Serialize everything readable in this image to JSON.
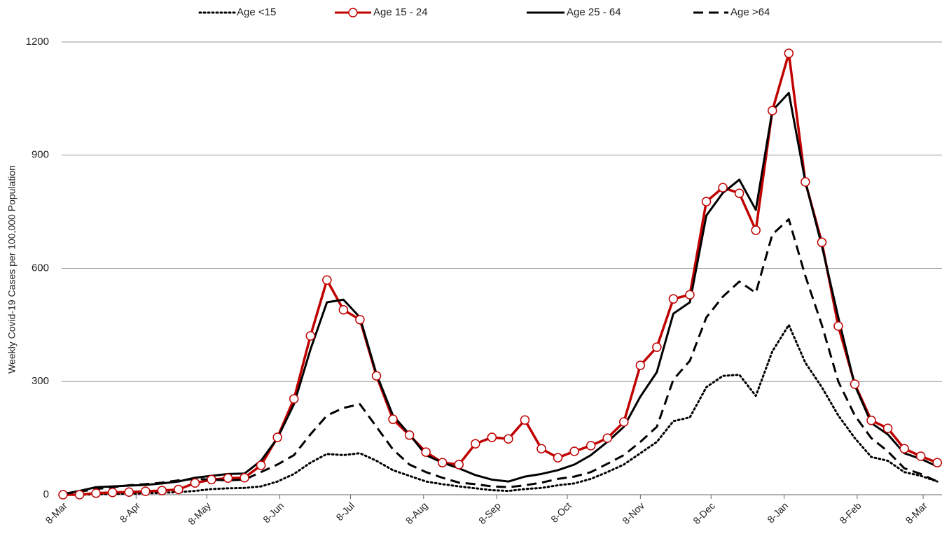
{
  "chart_data": {
    "type": "line",
    "y_axis_label": "Weekly Covid-19 Cases per 100,000 Population",
    "x": [
      0,
      7,
      14,
      21,
      28,
      35,
      42,
      49,
      56,
      63,
      70,
      77,
      84,
      91,
      98,
      105,
      112,
      119,
      126,
      133,
      140,
      147,
      154,
      161,
      168,
      175,
      182,
      189,
      196,
      203,
      210,
      217,
      224,
      231,
      238,
      245,
      252,
      259,
      266,
      273,
      280,
      287,
      294,
      301,
      308,
      315,
      322,
      329,
      336,
      343,
      350,
      357,
      364,
      371
    ],
    "xlim": [
      0,
      373
    ],
    "xticks": [
      {
        "value": 0,
        "label": "8-Mar"
      },
      {
        "value": 31,
        "label": "8-Apr"
      },
      {
        "value": 61,
        "label": "8-May"
      },
      {
        "value": 92,
        "label": "8-Jun"
      },
      {
        "value": 122,
        "label": "8-Jul"
      },
      {
        "value": 153,
        "label": "8-Aug"
      },
      {
        "value": 184,
        "label": "8-Sep"
      },
      {
        "value": 214,
        "label": "8-Oct"
      },
      {
        "value": 245,
        "label": "8-Nov"
      },
      {
        "value": 275,
        "label": "8-Dec"
      },
      {
        "value": 306,
        "label": "8-Jan"
      },
      {
        "value": 337,
        "label": "8-Feb"
      },
      {
        "value": 365,
        "label": "8-Mar"
      }
    ],
    "ylim": [
      0,
      1200
    ],
    "yticks": [
      0,
      300,
      600,
      900,
      1200
    ],
    "grid": true,
    "legend": "top",
    "series": [
      {
        "name": "Age <15",
        "color": "#000000",
        "line_style": "dotted",
        "values": [
          0,
          0,
          1,
          2,
          3,
          4,
          5,
          7,
          10,
          15,
          17,
          18,
          22,
          35,
          55,
          85,
          108,
          105,
          110,
          90,
          65,
          50,
          35,
          28,
          22,
          17,
          12,
          10,
          15,
          18,
          25,
          30,
          42,
          60,
          80,
          110,
          140,
          195,
          205,
          285,
          315,
          318,
          262,
          380,
          450,
          350,
          285,
          210,
          150,
          100,
          90,
          60,
          50,
          35
        ]
      },
      {
        "name": "Age 15 - 24",
        "color": "#c00000",
        "line_style": "solid",
        "marker": "circle",
        "values": [
          0,
          0,
          4,
          6,
          7,
          9,
          11,
          14,
          31,
          40,
          44,
          45,
          78,
          152,
          254,
          421,
          569,
          490,
          464,
          315,
          200,
          158,
          113,
          85,
          80,
          135,
          152,
          148,
          198,
          122,
          98,
          115,
          130,
          150,
          193,
          343,
          391,
          519,
          530,
          777,
          814,
          799,
          701,
          1018,
          1170,
          829,
          669,
          447,
          293,
          197,
          176,
          122,
          102,
          85
        ]
      },
      {
        "name": "Age 25 - 64",
        "color": "#000000",
        "line_style": "solid",
        "values": [
          2,
          10,
          20,
          22,
          24,
          26,
          30,
          35,
          45,
          50,
          55,
          56,
          90,
          150,
          240,
          385,
          510,
          517,
          470,
          320,
          210,
          160,
          105,
          85,
          70,
          52,
          40,
          35,
          48,
          55,
          65,
          80,
          105,
          140,
          180,
          260,
          325,
          480,
          510,
          740,
          800,
          835,
          755,
          1018,
          1065,
          830,
          660,
          470,
          290,
          190,
          160,
          110,
          95,
          75
        ]
      },
      {
        "name": "Age >64",
        "color": "#000000",
        "line_style": "dashed",
        "values": [
          2,
          8,
          15,
          20,
          25,
          28,
          32,
          38,
          42,
          40,
          38,
          40,
          60,
          80,
          105,
          160,
          210,
          230,
          240,
          180,
          120,
          80,
          60,
          45,
          32,
          28,
          22,
          20,
          25,
          32,
          42,
          48,
          60,
          82,
          105,
          140,
          180,
          305,
          355,
          470,
          525,
          565,
          535,
          690,
          730,
          580,
          450,
          300,
          210,
          150,
          115,
          70,
          55,
          35
        ]
      }
    ]
  }
}
